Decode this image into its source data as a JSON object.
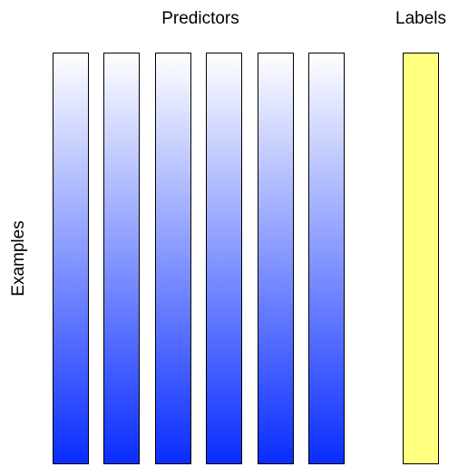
{
  "title_predictors": "Predictors",
  "title_labels": "Labels",
  "axis_examples": "Examples",
  "predictor_columns": 6,
  "label_columns": 1,
  "colors": {
    "predictor_gradient_top": "#ffffff",
    "predictor_gradient_bottom": "#0a2dff",
    "label_fill": "#ffff80",
    "border": "#000000"
  }
}
